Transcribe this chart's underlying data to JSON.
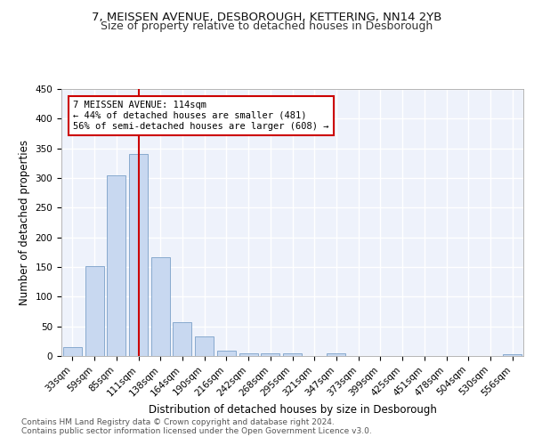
{
  "title1": "7, MEISSEN AVENUE, DESBOROUGH, KETTERING, NN14 2YB",
  "title2": "Size of property relative to detached houses in Desborough",
  "xlabel": "Distribution of detached houses by size in Desborough",
  "ylabel": "Number of detached properties",
  "bar_color": "#c8d8f0",
  "bar_edge_color": "#7ba0c8",
  "categories": [
    "33sqm",
    "59sqm",
    "85sqm",
    "111sqm",
    "138sqm",
    "164sqm",
    "190sqm",
    "216sqm",
    "242sqm",
    "268sqm",
    "295sqm",
    "321sqm",
    "347sqm",
    "373sqm",
    "399sqm",
    "425sqm",
    "451sqm",
    "478sqm",
    "504sqm",
    "530sqm",
    "556sqm"
  ],
  "values": [
    15,
    152,
    305,
    340,
    167,
    57,
    33,
    9,
    5,
    4,
    4,
    0,
    4,
    0,
    0,
    0,
    0,
    0,
    0,
    0,
    3
  ],
  "vline_index": 3,
  "vline_color": "#cc0000",
  "annotation_text": "7 MEISSEN AVENUE: 114sqm\n← 44% of detached houses are smaller (481)\n56% of semi-detached houses are larger (608) →",
  "annotation_box_color": "#ffffff",
  "annotation_box_edge": "#cc0000",
  "ylim": [
    0,
    450
  ],
  "yticks": [
    0,
    50,
    100,
    150,
    200,
    250,
    300,
    350,
    400,
    450
  ],
  "footer": "Contains HM Land Registry data © Crown copyright and database right 2024.\nContains public sector information licensed under the Open Government Licence v3.0.",
  "background_color": "#eef2fb",
  "grid_color": "#ffffff",
  "title1_fontsize": 9.5,
  "title2_fontsize": 9,
  "xlabel_fontsize": 8.5,
  "ylabel_fontsize": 8.5,
  "tick_fontsize": 7.5,
  "annotation_fontsize": 7.5,
  "footer_fontsize": 6.5
}
